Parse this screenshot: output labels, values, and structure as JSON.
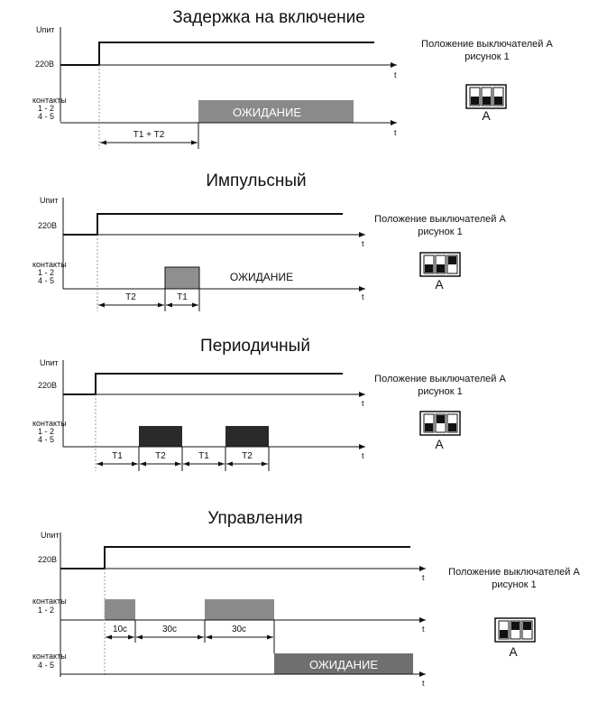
{
  "diagrams": [
    {
      "title": "Задержка на включение",
      "unit_label": "Uпит",
      "voltage_label": "220В",
      "contacts_label": [
        "контакты",
        "1 - 2",
        "4 - 5"
      ],
      "axis_label": "t",
      "interval_labels": [
        "T1 + T2"
      ],
      "state_label": "ОЖИДАНИЕ",
      "switch_caption": [
        "Положение выключателей А",
        "рисунок 1"
      ],
      "switch_letter": "А",
      "switch_positions": [
        "down",
        "down",
        "down"
      ]
    },
    {
      "title": "Импульсный",
      "unit_label": "Uпит",
      "voltage_label": "220В",
      "contacts_label": [
        "контакты",
        "1 - 2",
        "4 - 5"
      ],
      "axis_label": "t",
      "interval_labels": [
        "T2",
        "T1"
      ],
      "state_label": "ОЖИДАНИЕ",
      "switch_caption": [
        "Положение выключателей А",
        "рисунок 1"
      ],
      "switch_letter": "А",
      "switch_positions": [
        "down",
        "down",
        "up"
      ]
    },
    {
      "title": "Периодичный",
      "unit_label": "Uпит",
      "voltage_label": "220В",
      "contacts_label": [
        "контакты",
        "1 - 2",
        "4 - 5"
      ],
      "axis_label": "t",
      "interval_labels": [
        "T1",
        "T2",
        "T1",
        "T2"
      ],
      "switch_caption": [
        "Положение выключателей А",
        "рисунок 1"
      ],
      "switch_letter": "А",
      "switch_positions": [
        "down",
        "up",
        "down"
      ]
    },
    {
      "title": "Управления",
      "unit_label": "Uпит",
      "voltage_label": "220В",
      "contacts_12_label": [
        "контакты",
        "1 - 2"
      ],
      "contacts_45_label": [
        "контакты",
        "4 - 5"
      ],
      "axis_label": "t",
      "interval_labels": [
        "10с",
        "30с",
        "30с"
      ],
      "state_label": "ОЖИДАНИЕ",
      "switch_caption": [
        "Положение выключателей А",
        "рисунок 1"
      ],
      "switch_letter": "А",
      "switch_positions": [
        "down",
        "up",
        "up"
      ]
    }
  ],
  "colors": {
    "wait_box": "#8a8a8a",
    "pulse_box": "#8f8f8f",
    "periodic_box": "#2a2a2a",
    "control_box": "#8a8a8a",
    "control_wait_box": "#6f6f6f"
  }
}
